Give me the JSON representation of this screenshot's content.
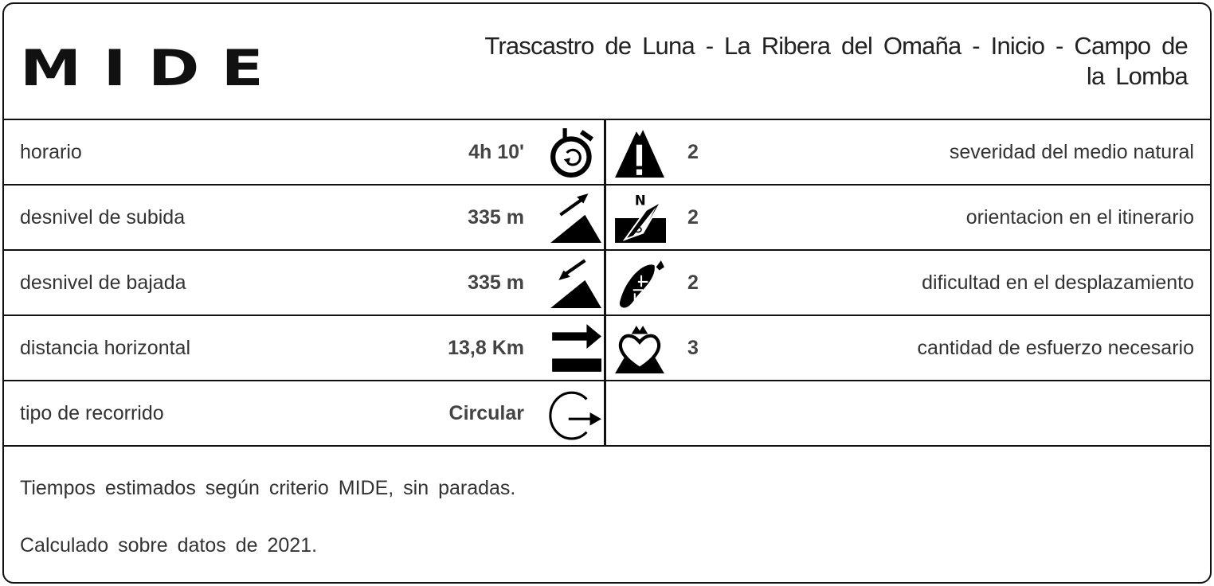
{
  "header": {
    "logo": "MIDE",
    "title": "Trascastro de Luna - La Ribera del Omaña - Inicio - Campo de la Lomba"
  },
  "left_rows": [
    {
      "label": "horario",
      "value": "4h 10'",
      "icon": "stopwatch-icon"
    },
    {
      "label": "desnivel de subida",
      "value": "335 m",
      "icon": "ascent-icon"
    },
    {
      "label": "desnivel de bajada",
      "value": "335 m",
      "icon": "descent-icon"
    },
    {
      "label": "distancia horizontal",
      "value": "13,8 Km",
      "icon": "distance-arrow-icon"
    },
    {
      "label": "tipo de recorrido",
      "value": "Circular",
      "icon": "circular-route-icon"
    }
  ],
  "right_rows": [
    {
      "score": "2",
      "label": "severidad del medio natural",
      "icon": "mountain-warning-icon"
    },
    {
      "score": "2",
      "label": "orientacion en el itinerario",
      "icon": "compass-icon"
    },
    {
      "score": "2",
      "label": "dificultad en el desplazamiento",
      "icon": "boot-print-icon"
    },
    {
      "score": "3",
      "label": "cantidad de esfuerzo necesario",
      "icon": "heart-mountain-icon"
    }
  ],
  "footer": {
    "line1": "Tiempos estimados según criterio MIDE, sin paradas.",
    "line2": "Calculado sobre datos de 2021."
  }
}
